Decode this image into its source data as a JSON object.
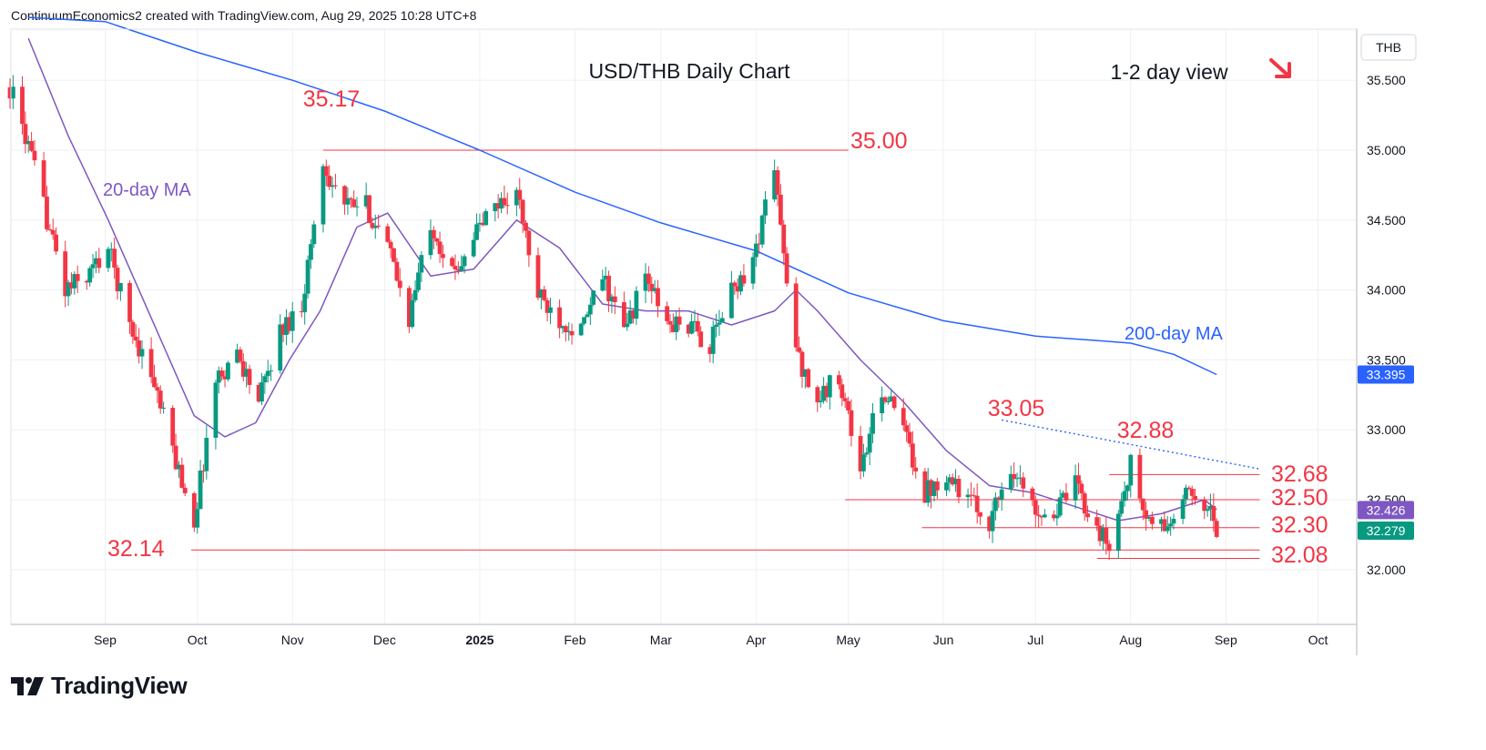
{
  "header": {
    "text": "ContinuumEconomics2 created with TradingView.com, Aug 29, 2025 10:28 UTC+8"
  },
  "logo": {
    "text": "TradingView"
  },
  "colors": {
    "up": "#089981",
    "down": "#f23645",
    "ma20": "#7e57c2",
    "ma200": "#2962ff",
    "level": "#f23645",
    "trend": "#2962ff"
  },
  "chart_data": {
    "type": "candlestick",
    "title": "USD/THB Daily Chart",
    "view": "1-2 day view",
    "view_arrow": "down-right-arrow-icon",
    "currency_label": "THB",
    "y_ticks": [
      "35.500",
      "35.000",
      "34.500",
      "34.000",
      "33.500",
      "33.000",
      "32.500",
      "32.000"
    ],
    "ylim": [
      31.6,
      35.95
    ],
    "x_ticks": [
      {
        "label": "Sep",
        "date": "2024-09-01"
      },
      {
        "label": "Oct",
        "date": "2024-10-01"
      },
      {
        "label": "Nov",
        "date": "2024-11-01"
      },
      {
        "label": "Dec",
        "date": "2024-12-01"
      },
      {
        "label": "2025",
        "date": "2025-01-01",
        "bold": true
      },
      {
        "label": "Feb",
        "date": "2025-02-01"
      },
      {
        "label": "Mar",
        "date": "2025-03-01"
      },
      {
        "label": "Apr",
        "date": "2025-04-01"
      },
      {
        "label": "May",
        "date": "2025-05-01"
      },
      {
        "label": "Jun",
        "date": "2025-06-01"
      },
      {
        "label": "Jul",
        "date": "2025-07-01"
      },
      {
        "label": "Aug",
        "date": "2025-08-01"
      },
      {
        "label": "Sep",
        "date": "2025-09-01"
      },
      {
        "label": "Oct",
        "date": "2025-10-01"
      }
    ],
    "price_path": [
      [
        "2024-08-01",
        35.45
      ],
      [
        "2024-08-06",
        35.1
      ],
      [
        "2024-08-12",
        34.6
      ],
      [
        "2024-08-19",
        34.0
      ],
      [
        "2024-08-26",
        34.1
      ],
      [
        "2024-09-02",
        34.3
      ],
      [
        "2024-09-09",
        33.75
      ],
      [
        "2024-09-16",
        33.4
      ],
      [
        "2024-09-23",
        32.85
      ],
      [
        "2024-09-30",
        32.35
      ],
      [
        "2024-10-07",
        33.35
      ],
      [
        "2024-10-14",
        33.55
      ],
      [
        "2024-10-21",
        33.2
      ],
      [
        "2024-10-28",
        33.7
      ],
      [
        "2024-11-04",
        33.9
      ],
      [
        "2024-11-11",
        34.9
      ],
      [
        "2024-11-18",
        34.6
      ],
      [
        "2024-11-25",
        34.6
      ],
      [
        "2024-12-02",
        34.3
      ],
      [
        "2024-12-09",
        33.8
      ],
      [
        "2024-12-16",
        34.5
      ],
      [
        "2024-12-23",
        34.1
      ],
      [
        "2024-12-30",
        34.4
      ],
      [
        "2025-01-06",
        34.6
      ],
      [
        "2025-01-13",
        34.7
      ],
      [
        "2025-01-20",
        33.95
      ],
      [
        "2025-01-27",
        33.8
      ],
      [
        "2025-02-03",
        33.7
      ],
      [
        "2025-02-10",
        34.1
      ],
      [
        "2025-02-17",
        33.7
      ],
      [
        "2025-02-24",
        34.1
      ],
      [
        "2025-03-03",
        33.75
      ],
      [
        "2025-03-10",
        33.75
      ],
      [
        "2025-03-17",
        33.6
      ],
      [
        "2025-03-24",
        34.0
      ],
      [
        "2025-03-31",
        34.2
      ],
      [
        "2025-04-07",
        34.9
      ],
      [
        "2025-04-11",
        34.0
      ],
      [
        "2025-04-15",
        33.5
      ],
      [
        "2025-04-21",
        33.2
      ],
      [
        "2025-04-28",
        33.4
      ],
      [
        "2025-05-05",
        32.7
      ],
      [
        "2025-05-12",
        33.3
      ],
      [
        "2025-05-19",
        33.0
      ],
      [
        "2025-05-26",
        32.55
      ],
      [
        "2025-06-02",
        32.7
      ],
      [
        "2025-06-09",
        32.5
      ],
      [
        "2025-06-16",
        32.35
      ],
      [
        "2025-06-23",
        32.75
      ],
      [
        "2025-06-30",
        32.45
      ],
      [
        "2025-07-07",
        32.4
      ],
      [
        "2025-07-14",
        32.6
      ],
      [
        "2025-07-21",
        32.3
      ],
      [
        "2025-07-25",
        32.15
      ],
      [
        "2025-08-01",
        32.75
      ],
      [
        "2025-08-06",
        32.35
      ],
      [
        "2025-08-13",
        32.3
      ],
      [
        "2025-08-20",
        32.55
      ],
      [
        "2025-08-25",
        32.5
      ],
      [
        "2025-08-29",
        32.28
      ]
    ],
    "ma20": {
      "label": "20-day MA",
      "points": [
        [
          "2024-08-07",
          35.8
        ],
        [
          "2024-08-20",
          35.1
        ],
        [
          "2024-09-02",
          34.5
        ],
        [
          "2024-09-16",
          33.8
        ],
        [
          "2024-09-30",
          33.1
        ],
        [
          "2024-10-10",
          32.95
        ],
        [
          "2024-10-20",
          33.05
        ],
        [
          "2024-10-31",
          33.5
        ],
        [
          "2024-11-10",
          33.85
        ],
        [
          "2024-11-22",
          34.45
        ],
        [
          "2024-12-02",
          34.55
        ],
        [
          "2024-12-16",
          34.1
        ],
        [
          "2024-12-30",
          34.15
        ],
        [
          "2025-01-13",
          34.5
        ],
        [
          "2025-01-27",
          34.3
        ],
        [
          "2025-02-10",
          33.9
        ],
        [
          "2025-02-24",
          33.85
        ],
        [
          "2025-03-10",
          33.85
        ],
        [
          "2025-03-24",
          33.75
        ],
        [
          "2025-04-07",
          33.85
        ],
        [
          "2025-04-14",
          34.0
        ],
        [
          "2025-04-21",
          33.85
        ],
        [
          "2025-05-05",
          33.5
        ],
        [
          "2025-05-19",
          33.2
        ],
        [
          "2025-06-02",
          32.85
        ],
        [
          "2025-06-16",
          32.6
        ],
        [
          "2025-06-30",
          32.55
        ],
        [
          "2025-07-14",
          32.45
        ],
        [
          "2025-07-28",
          32.35
        ],
        [
          "2025-08-11",
          32.4
        ],
        [
          "2025-08-25",
          32.5
        ],
        [
          "2025-08-29",
          32.43
        ]
      ]
    },
    "ma200": {
      "label": "200-day MA",
      "value_badge": "33.395",
      "points": [
        [
          "2024-08-07",
          35.95
        ],
        [
          "2024-09-01",
          35.92
        ],
        [
          "2024-10-01",
          35.7
        ],
        [
          "2024-11-01",
          35.5
        ],
        [
          "2024-12-01",
          35.28
        ],
        [
          "2025-01-01",
          35.0
        ],
        [
          "2025-02-01",
          34.7
        ],
        [
          "2025-03-01",
          34.48
        ],
        [
          "2025-04-01",
          34.28
        ],
        [
          "2025-05-01",
          33.98
        ],
        [
          "2025-06-01",
          33.78
        ],
        [
          "2025-07-01",
          33.67
        ],
        [
          "2025-07-20",
          33.64
        ],
        [
          "2025-08-01",
          33.62
        ],
        [
          "2025-08-15",
          33.54
        ],
        [
          "2025-08-29",
          33.395
        ]
      ]
    },
    "price_badges": [
      {
        "value": "32.426",
        "price": 32.426,
        "color": "#7e57c2"
      },
      {
        "value": "32.279",
        "price": 32.279,
        "color": "#089981"
      },
      {
        "value": "33.395",
        "price": 33.395,
        "color": "#2962ff"
      }
    ],
    "levels": [
      {
        "label": "35.00",
        "price": 35.0,
        "from": "2024-11-11",
        "to": "2025-05-01"
      },
      {
        "label": "32.68",
        "price": 32.68,
        "from": "2025-07-25",
        "to": "2025-09-12"
      },
      {
        "label": "32.50",
        "price": 32.5,
        "from": "2025-04-30",
        "to": "2025-09-12"
      },
      {
        "label": "32.30",
        "price": 32.3,
        "from": "2025-05-25",
        "to": "2025-09-12"
      },
      {
        "label": "32.14",
        "price": 32.14,
        "from": "2024-09-29",
        "to": "2025-09-12"
      },
      {
        "label": "32.08",
        "price": 32.08,
        "from": "2025-07-21",
        "to": "2025-09-12"
      }
    ],
    "annotations": [
      {
        "label": "35.17",
        "price": 35.17
      },
      {
        "label": "33.05",
        "price": 33.05
      },
      {
        "label": "32.88",
        "price": 32.88
      }
    ],
    "trendline": {
      "from": [
        "2025-06-20",
        33.07
      ],
      "to": [
        "2025-09-12",
        32.72
      ]
    }
  }
}
